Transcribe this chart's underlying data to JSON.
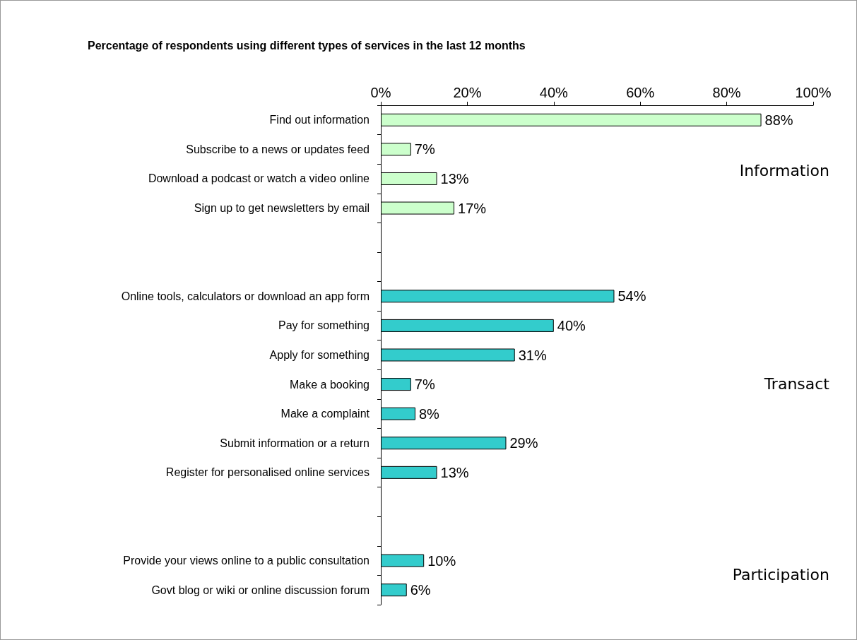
{
  "chart_data": {
    "type": "bar",
    "orientation": "horizontal",
    "title": "Percentage of respondents using different types of services in the last 12 months",
    "categories": [
      "Find out information",
      "Subscribe to a news or updates feed",
      "Download a podcast or watch a video online",
      "Sign up to get newsletters by email",
      null,
      null,
      "Online tools, calculators or download an app form",
      "Pay for something",
      "Apply for something",
      "Make a booking",
      "Make a complaint",
      "Submit information or a return",
      "Register for personalised online services",
      null,
      null,
      "Provide your views online to a public consultation",
      "Govt blog or wiki or online discussion forum"
    ],
    "values": [
      88,
      7,
      13,
      17,
      null,
      null,
      54,
      40,
      31,
      7,
      8,
      29,
      13,
      null,
      null,
      10,
      6
    ],
    "value_labels": [
      "88%",
      "7%",
      "13%",
      "17%",
      null,
      null,
      "54%",
      "40%",
      "31%",
      "7%",
      "8%",
      "29%",
      "13%",
      null,
      null,
      "10%",
      "6%"
    ],
    "colors": [
      "#ccffcc",
      "#ccffcc",
      "#ccffcc",
      "#ccffcc",
      null,
      null,
      "#33cccc",
      "#33cccc",
      "#33cccc",
      "#33cccc",
      "#33cccc",
      "#33cccc",
      "#33cccc",
      null,
      null,
      "#33cccc",
      "#33cccc"
    ],
    "xlim": [
      0,
      100
    ],
    "xticks": [
      {
        "value": 0,
        "label": "0%"
      },
      {
        "value": 20,
        "label": "20%"
      },
      {
        "value": 40,
        "label": "40%"
      },
      {
        "value": 60,
        "label": "60%"
      },
      {
        "value": 80,
        "label": "80%"
      },
      {
        "value": 100,
        "label": "100%"
      }
    ],
    "annotations": [
      "Information",
      "Transact",
      "Participation"
    ],
    "grid": false
  }
}
